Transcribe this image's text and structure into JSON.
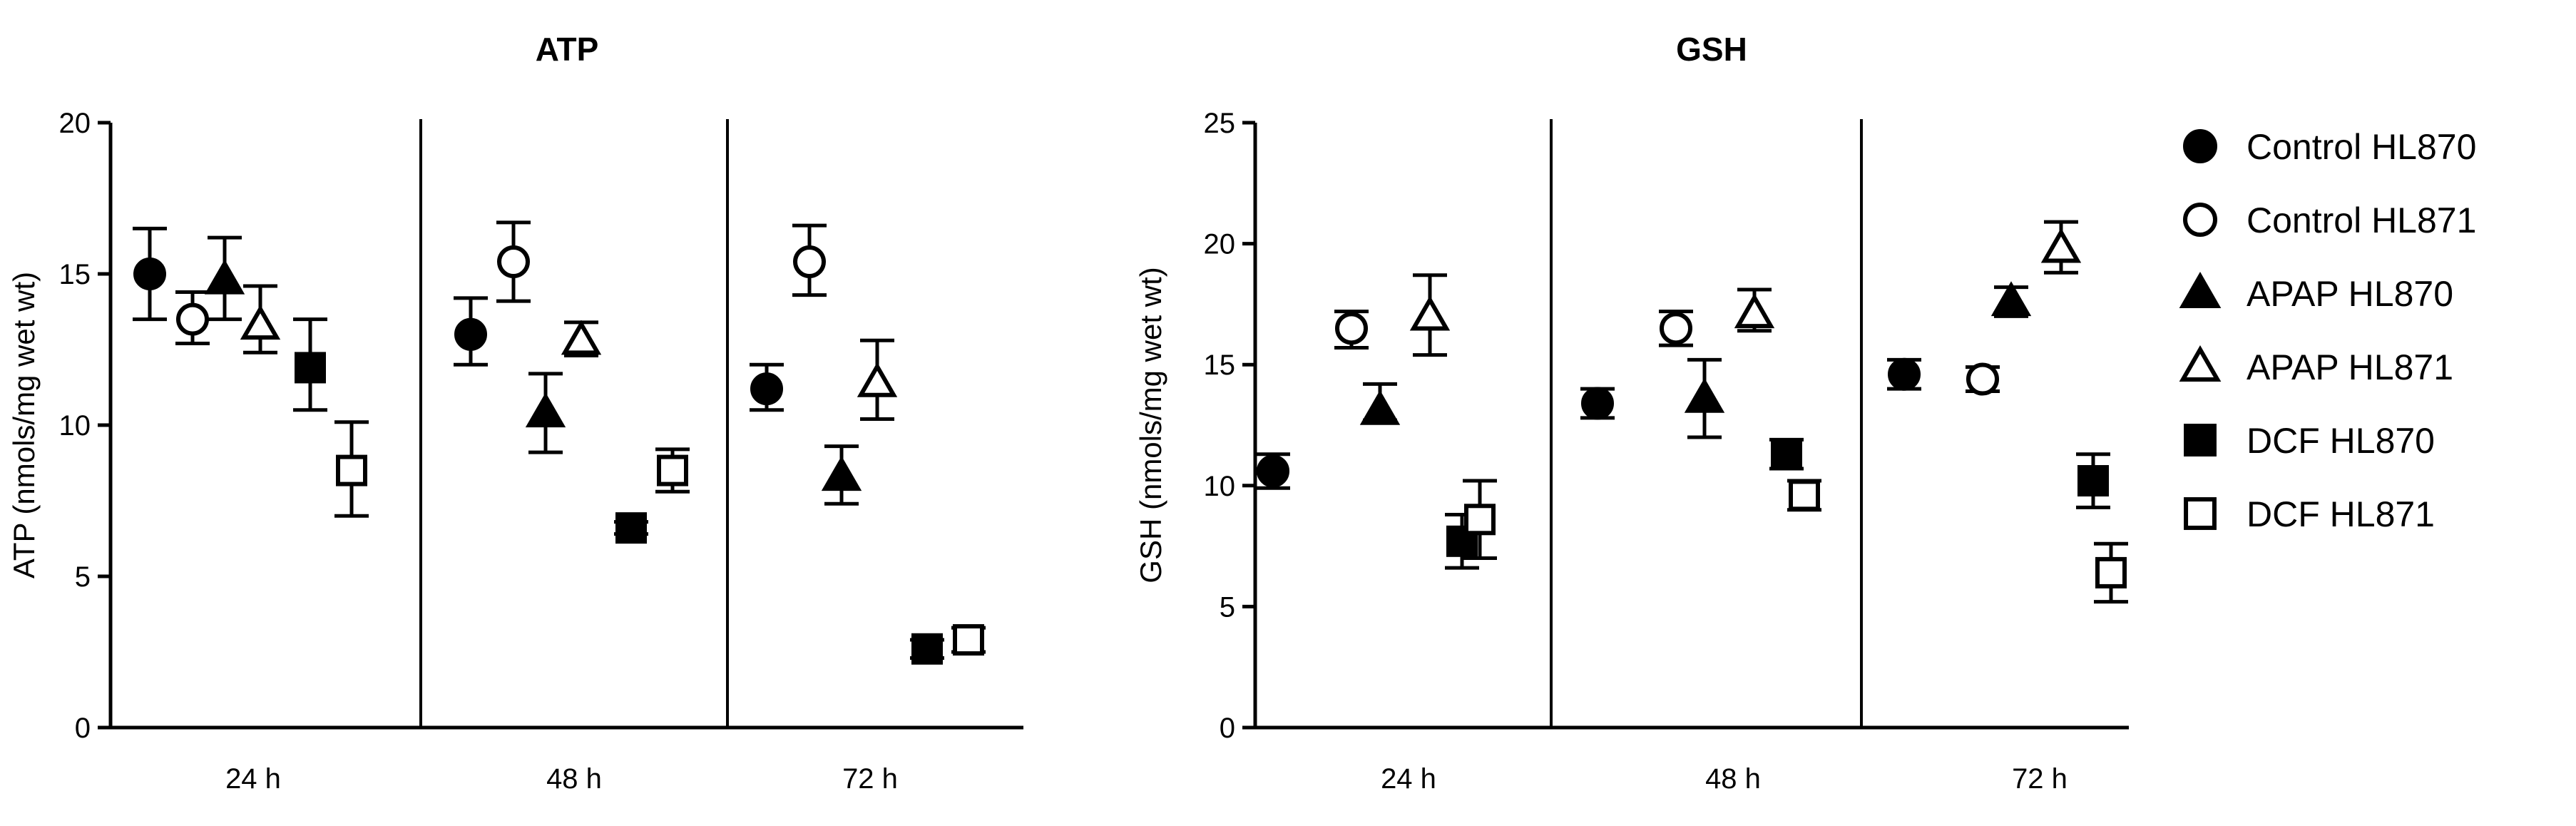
{
  "chart_data": [
    {
      "type": "scatter",
      "title": "ATP",
      "ylabel": "ATP (nmols/mg wet wt)",
      "xlabel": "",
      "ylim": [
        0,
        20
      ],
      "yticks": [
        0,
        5,
        10,
        15,
        20
      ],
      "groups": [
        "24 h",
        "48 h",
        "72 h"
      ],
      "grid": false,
      "series": [
        {
          "name": "Control HL870",
          "marker": "filled-circle",
          "values": [
            15.0,
            13.0,
            11.2
          ],
          "err_low": [
            13.5,
            12.0,
            10.5
          ],
          "err_high": [
            16.5,
            14.2,
            12.0
          ]
        },
        {
          "name": "Control HL871",
          "marker": "open-circle",
          "values": [
            13.5,
            15.4,
            15.4
          ],
          "err_low": [
            12.7,
            14.1,
            14.3
          ],
          "err_high": [
            14.4,
            16.7,
            16.6
          ]
        },
        {
          "name": "APAP HL870",
          "marker": "filled-triangle",
          "values": [
            14.8,
            10.4,
            8.3
          ],
          "err_low": [
            13.5,
            9.1,
            7.4
          ],
          "err_high": [
            16.2,
            11.7,
            9.3
          ]
        },
        {
          "name": "APAP HL871",
          "marker": "open-triangle",
          "values": [
            13.3,
            12.8,
            11.4
          ],
          "err_low": [
            12.4,
            12.3,
            10.2
          ],
          "err_high": [
            14.6,
            13.4,
            12.8
          ]
        },
        {
          "name": "DCF HL870",
          "marker": "filled-square",
          "values": [
            11.9,
            6.6,
            2.6
          ],
          "err_low": [
            10.5,
            6.4,
            2.3
          ],
          "err_high": [
            13.5,
            6.8,
            2.9
          ]
        },
        {
          "name": "DCF HL871",
          "marker": "open-square",
          "values": [
            8.5,
            8.5,
            2.9
          ],
          "err_low": [
            7.0,
            7.8,
            2.5
          ],
          "err_high": [
            10.1,
            9.2,
            3.3
          ]
        }
      ]
    },
    {
      "type": "scatter",
      "title": "GSH",
      "ylabel": "GSH (nmols/mg wet wt)",
      "xlabel": "",
      "ylim": [
        0,
        25
      ],
      "yticks": [
        0,
        5,
        10,
        15,
        20,
        25
      ],
      "groups": [
        "24 h",
        "48 h",
        "72 h"
      ],
      "grid": false,
      "series": [
        {
          "name": "Control HL870",
          "marker": "filled-circle",
          "values": [
            10.6,
            13.4,
            14.6
          ],
          "err_low": [
            9.9,
            12.8,
            14.0
          ],
          "err_high": [
            11.3,
            14.0,
            15.2
          ]
        },
        {
          "name": "Control HL871",
          "marker": "open-circle",
          "values": [
            16.5,
            16.5,
            14.4
          ],
          "err_low": [
            15.7,
            15.8,
            13.9
          ],
          "err_high": [
            17.2,
            17.2,
            14.9
          ]
        },
        {
          "name": "APAP HL870",
          "marker": "filled-triangle",
          "values": [
            13.1,
            13.6,
            17.6
          ],
          "err_low": [
            12.7,
            12.0,
            17.0
          ],
          "err_high": [
            14.2,
            15.2,
            18.2
          ]
        },
        {
          "name": "APAP HL871",
          "marker": "open-triangle",
          "values": [
            17.0,
            17.1,
            19.8
          ],
          "err_low": [
            15.4,
            16.4,
            18.8
          ],
          "err_high": [
            18.7,
            18.1,
            20.9
          ]
        },
        {
          "name": "DCF HL870",
          "marker": "filled-square",
          "values": [
            7.7,
            11.3,
            10.2
          ],
          "err_low": [
            6.6,
            10.7,
            9.1
          ],
          "err_high": [
            8.8,
            11.9,
            11.3
          ]
        },
        {
          "name": "DCF HL871",
          "marker": "open-square",
          "values": [
            8.6,
            9.6,
            6.4
          ],
          "err_low": [
            7.0,
            9.0,
            5.2
          ],
          "err_high": [
            10.2,
            10.2,
            7.6
          ]
        }
      ]
    }
  ],
  "legend": {
    "position": "right",
    "items": [
      {
        "label": "Control HL870",
        "marker": "filled-circle"
      },
      {
        "label": "Control HL871",
        "marker": "open-circle"
      },
      {
        "label": "APAP HL870",
        "marker": "filled-triangle"
      },
      {
        "label": "APAP HL871",
        "marker": "open-triangle"
      },
      {
        "label": "DCF HL870",
        "marker": "filled-square"
      },
      {
        "label": "DCF HL871",
        "marker": "open-square"
      }
    ]
  },
  "colors": {
    "ink": "#000000",
    "background": "#ffffff"
  }
}
